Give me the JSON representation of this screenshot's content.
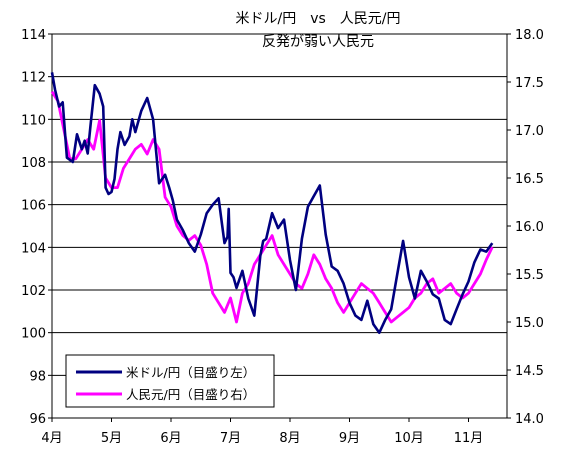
{
  "chart_data": {
    "type": "line",
    "title": "米ドル/円　vs　人民元/円",
    "subtitle": "反発が弱い人民元",
    "x_ticks": [
      "4月",
      "5月",
      "6月",
      "7月",
      "8月",
      "9月",
      "10月",
      "11月"
    ],
    "y_left": {
      "min": 96,
      "max": 114,
      "ticks": [
        "96",
        "98",
        "100",
        "102",
        "104",
        "106",
        "108",
        "110",
        "112",
        "114"
      ]
    },
    "y_right": {
      "min": 14.0,
      "max": 18.0,
      "ticks": [
        "14.0",
        "14.5",
        "15.0",
        "15.5",
        "16.0",
        "16.5",
        "17.0",
        "17.5",
        "18.0"
      ]
    },
    "grid": "horizontal",
    "legend_position": "bottom-left",
    "series": [
      {
        "name": "米ドル/円（目盛り左）",
        "axis": "left",
        "color": "#000080",
        "x": [
          0.0,
          0.05,
          0.12,
          0.18,
          0.25,
          0.35,
          0.42,
          0.5,
          0.55,
          0.6,
          0.65,
          0.72,
          0.8,
          0.86,
          0.9,
          0.95,
          1.0,
          1.05,
          1.1,
          1.15,
          1.22,
          1.3,
          1.35,
          1.4,
          1.5,
          1.6,
          1.7,
          1.8,
          1.9,
          1.97,
          2.03,
          2.1,
          2.2,
          2.3,
          2.4,
          2.5,
          2.6,
          2.7,
          2.8,
          2.9,
          2.95,
          2.97,
          3.0,
          3.05,
          3.1,
          3.2,
          3.3,
          3.4,
          3.5,
          3.55,
          3.6,
          3.7,
          3.8,
          3.9,
          4.0,
          4.1,
          4.2,
          4.3,
          4.4,
          4.5,
          4.6,
          4.7,
          4.8,
          4.9,
          5.0,
          5.1,
          5.2,
          5.3,
          5.4,
          5.5,
          5.6,
          5.7,
          5.8,
          5.9,
          6.0,
          6.1,
          6.2,
          6.3,
          6.4,
          6.5,
          6.6,
          6.7,
          6.8,
          6.9,
          7.0,
          7.1,
          7.2,
          7.3,
          7.4
        ],
        "values": [
          112.2,
          111.4,
          110.6,
          110.8,
          108.2,
          108.0,
          109.3,
          108.6,
          109.0,
          108.4,
          109.8,
          111.6,
          111.2,
          110.6,
          106.8,
          106.5,
          106.6,
          107.2,
          108.6,
          109.4,
          108.8,
          109.2,
          110.0,
          109.4,
          110.4,
          111.0,
          110.0,
          107.0,
          107.4,
          106.8,
          106.2,
          105.3,
          104.8,
          104.2,
          103.8,
          104.6,
          105.6,
          106.0,
          106.3,
          104.2,
          104.5,
          105.8,
          102.8,
          102.6,
          102.1,
          102.9,
          101.6,
          100.8,
          103.6,
          104.3,
          104.4,
          105.6,
          104.9,
          105.3,
          103.4,
          102.0,
          104.4,
          105.9,
          106.4,
          106.9,
          104.6,
          103.1,
          102.9,
          102.3,
          101.4,
          100.8,
          100.6,
          101.5,
          100.4,
          100.0,
          100.6,
          101.1,
          102.7,
          104.3,
          102.6,
          101.6,
          102.9,
          102.4,
          101.8,
          101.6,
          100.6,
          100.4,
          101.1,
          101.8,
          102.4,
          103.3,
          103.9,
          103.8,
          104.2
        ]
      },
      {
        "name": "人民元/円（目盛り右）",
        "axis": "right",
        "color": "#ff00ff",
        "x": [
          0.0,
          0.1,
          0.2,
          0.3,
          0.4,
          0.5,
          0.6,
          0.7,
          0.8,
          0.9,
          1.0,
          1.1,
          1.2,
          1.3,
          1.4,
          1.5,
          1.6,
          1.7,
          1.8,
          1.9,
          2.0,
          2.1,
          2.2,
          2.3,
          2.4,
          2.5,
          2.6,
          2.7,
          2.8,
          2.9,
          3.0,
          3.1,
          3.2,
          3.3,
          3.4,
          3.5,
          3.6,
          3.7,
          3.8,
          3.9,
          4.0,
          4.1,
          4.2,
          4.3,
          4.4,
          4.5,
          4.6,
          4.7,
          4.8,
          4.9,
          5.0,
          5.1,
          5.2,
          5.3,
          5.4,
          5.5,
          5.6,
          5.7,
          5.8,
          5.9,
          6.0,
          6.1,
          6.2,
          6.3,
          6.4,
          6.5,
          6.6,
          6.7,
          6.8,
          6.9,
          7.0,
          7.1,
          7.2,
          7.3,
          7.4
        ],
        "values": [
          17.4,
          17.3,
          17.0,
          16.7,
          16.7,
          16.8,
          16.9,
          16.8,
          17.1,
          16.5,
          16.4,
          16.4,
          16.6,
          16.7,
          16.8,
          16.85,
          16.75,
          16.9,
          16.8,
          16.3,
          16.2,
          16.0,
          15.9,
          15.85,
          15.9,
          15.8,
          15.6,
          15.3,
          15.2,
          15.1,
          15.25,
          15.0,
          15.3,
          15.4,
          15.6,
          15.7,
          15.8,
          15.9,
          15.7,
          15.6,
          15.5,
          15.4,
          15.35,
          15.5,
          15.7,
          15.6,
          15.45,
          15.35,
          15.2,
          15.1,
          15.2,
          15.3,
          15.4,
          15.35,
          15.3,
          15.2,
          15.1,
          15.0,
          15.05,
          15.1,
          15.15,
          15.25,
          15.3,
          15.4,
          15.45,
          15.3,
          15.35,
          15.4,
          15.3,
          15.25,
          15.3,
          15.4,
          15.5,
          15.65,
          15.78
        ]
      }
    ]
  }
}
